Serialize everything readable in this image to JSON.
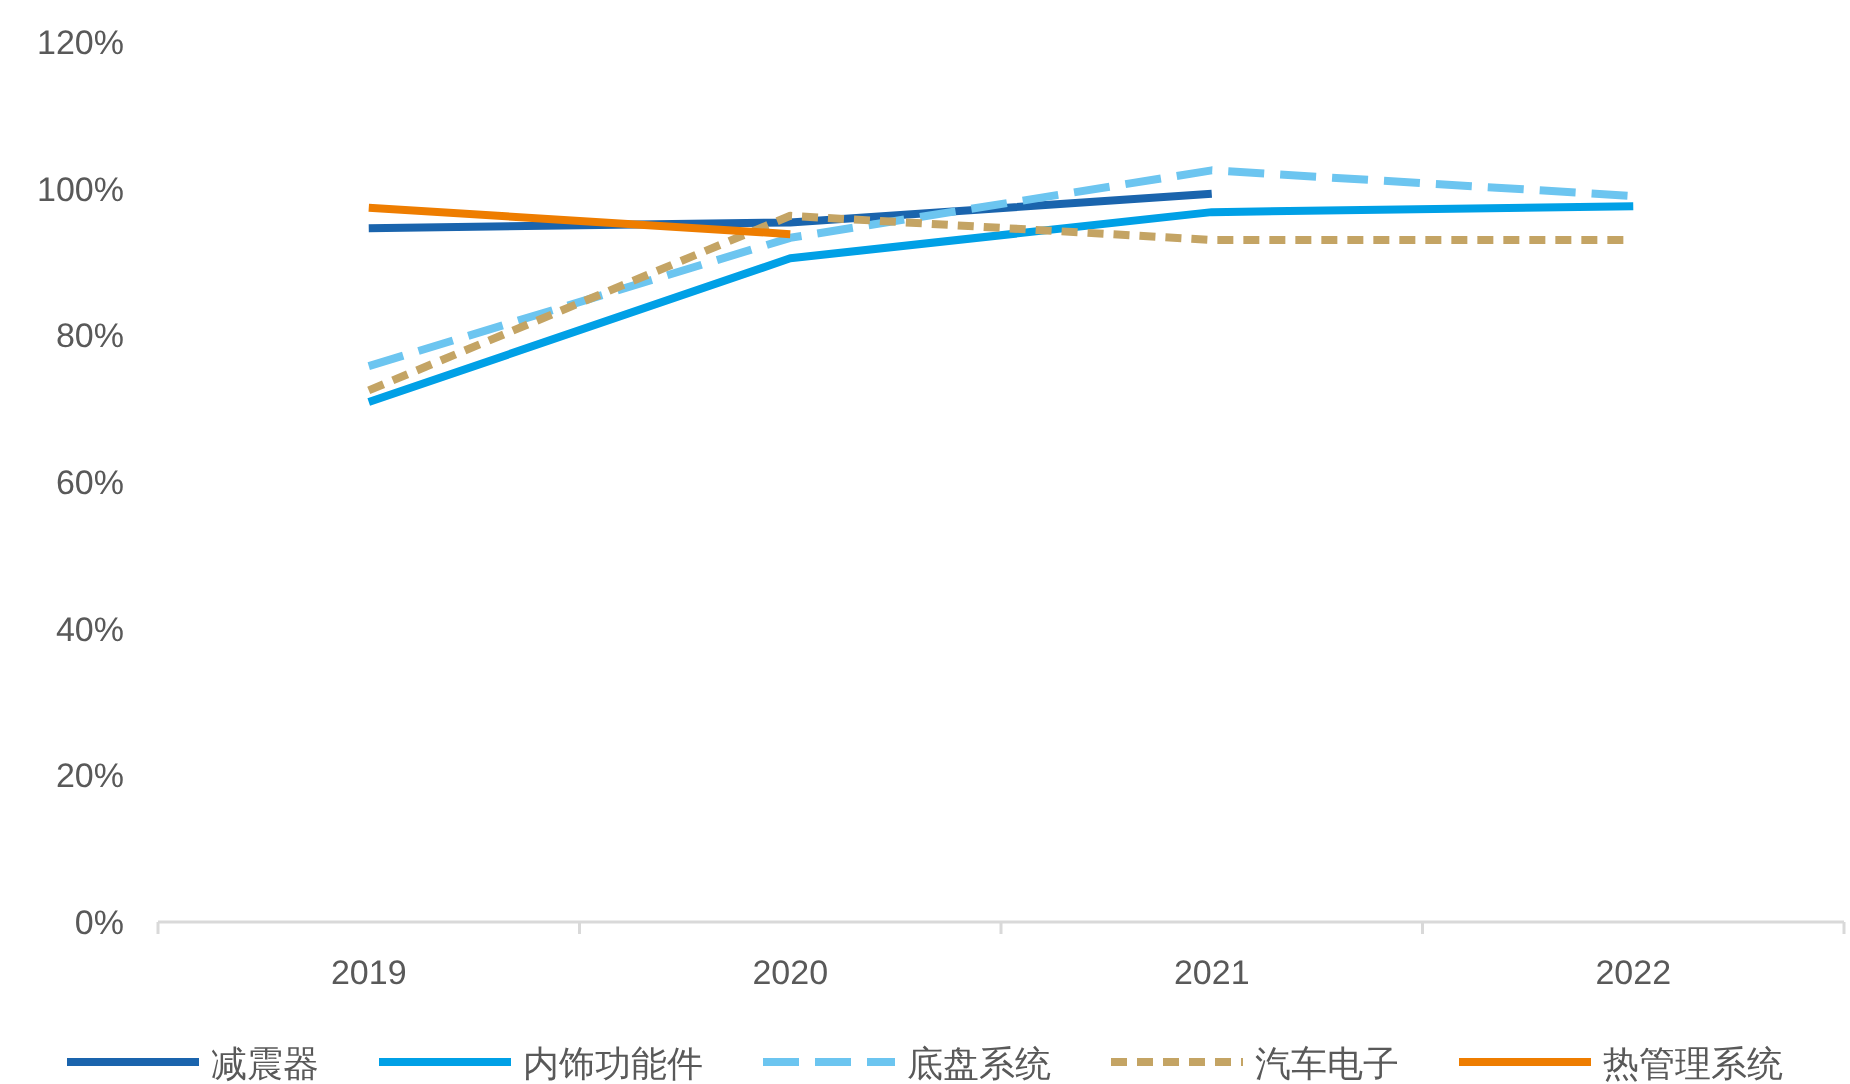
{
  "chart_data": {
    "type": "line",
    "categories": [
      "2019",
      "2020",
      "2021",
      "2022"
    ],
    "series": [
      {
        "name": "减震器",
        "color": "#1a64ad",
        "values": [
          94.6,
          95.4,
          99.3,
          null
        ],
        "line_style": "solid"
      },
      {
        "name": "内饰功能件",
        "color": "#00a0e6",
        "values": [
          70.9,
          90.5,
          96.8,
          97.6
        ],
        "line_style": "solid"
      },
      {
        "name": "底盘系统",
        "color": "#6cc5f0",
        "values": [
          75.8,
          93.3,
          102.5,
          99.0
        ],
        "line_style": "dashed"
      },
      {
        "name": "汽车电子",
        "color": "#c4a464",
        "values": [
          72.5,
          96.3,
          93.0,
          93.0
        ],
        "line_style": "dotted"
      },
      {
        "name": "热管理系统",
        "color": "#ee7d00",
        "values": [
          97.4,
          93.8,
          null,
          null
        ],
        "line_style": "solid"
      }
    ],
    "ylim": [
      0,
      120
    ],
    "yticks": [
      {
        "value": 0,
        "label": "0%"
      },
      {
        "value": 20,
        "label": "20%"
      },
      {
        "value": 40,
        "label": "40%"
      },
      {
        "value": 60,
        "label": "60%"
      },
      {
        "value": 80,
        "label": "80%"
      },
      {
        "value": 100,
        "label": "100%"
      },
      {
        "value": 120,
        "label": "120%"
      }
    ],
    "legend": "bottom"
  }
}
